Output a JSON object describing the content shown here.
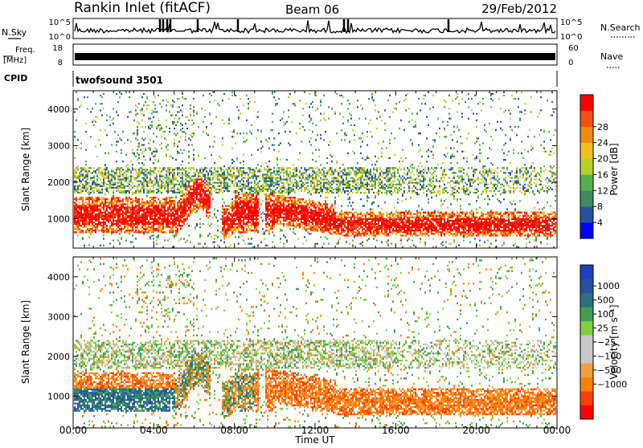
{
  "header": {
    "station": "Rankin Inlet (fitACF)",
    "beam": "Beam 06",
    "date": "29/Feb/2012"
  },
  "top_panels": {
    "nsky": {
      "label": "N.Sky",
      "ticks": [
        "10^5",
        "10^0"
      ],
      "right_ticks": [
        "10^5",
        "10^0"
      ],
      "right_label": "N.Search"
    },
    "freq": {
      "label_line1": "Freq.",
      "label_line2": "[MHz]",
      "ticks": [
        "18",
        "8"
      ],
      "right_ticks": [
        "60",
        "0"
      ],
      "right_label": "Nave"
    },
    "cpid": {
      "label": "CPID",
      "value": "twofsound 3501"
    }
  },
  "colors": {
    "power_scale": [
      "#0000ff",
      "#2a4fa0",
      "#3f8a60",
      "#54b04a",
      "#b8d02a",
      "#f0c020",
      "#f08a10",
      "#f05010",
      "#ff0000"
    ],
    "velocity_scale": [
      "#ff0000",
      "#ff4000",
      "#ff8000",
      "#f0a040",
      "#c8c8c8",
      "#c8c8c8",
      "#80d040",
      "#40a050",
      "#2a7080",
      "#2a50a0",
      "#2040c0"
    ]
  },
  "chart_data": [
    {
      "type": "heatmap",
      "panel": "power",
      "xlabel": "",
      "ylabel": "Slant Range [km]",
      "xlim": [
        0,
        24
      ],
      "ylim": [
        200,
        4500
      ],
      "y_ticks": [
        1000,
        2000,
        3000,
        4000
      ],
      "colorbar": {
        "label": "Power [dB]",
        "range": [
          0,
          32
        ],
        "ticks": [
          4,
          8,
          12,
          16,
          20,
          24,
          28
        ]
      },
      "x_ticks_hours": [
        0,
        4,
        8,
        12,
        16,
        20,
        24
      ]
    },
    {
      "type": "heatmap",
      "panel": "velocity",
      "xlabel": "Time UT",
      "ylabel": "Slant Range [km]",
      "xlim": [
        0,
        24
      ],
      "ylim": [
        200,
        4500
      ],
      "y_ticks": [
        1000,
        2000,
        3000,
        4000
      ],
      "x_ticks": [
        "00:00",
        "04:00",
        "08:00",
        "12:00",
        "16:00",
        "20:00",
        "00:00"
      ],
      "colorbar": {
        "label": "Velocity [m s⁻¹]",
        "ticks": [
          "1000",
          "500",
          "100",
          "25",
          "−25",
          "−100",
          "−500",
          "−1000"
        ]
      }
    }
  ]
}
